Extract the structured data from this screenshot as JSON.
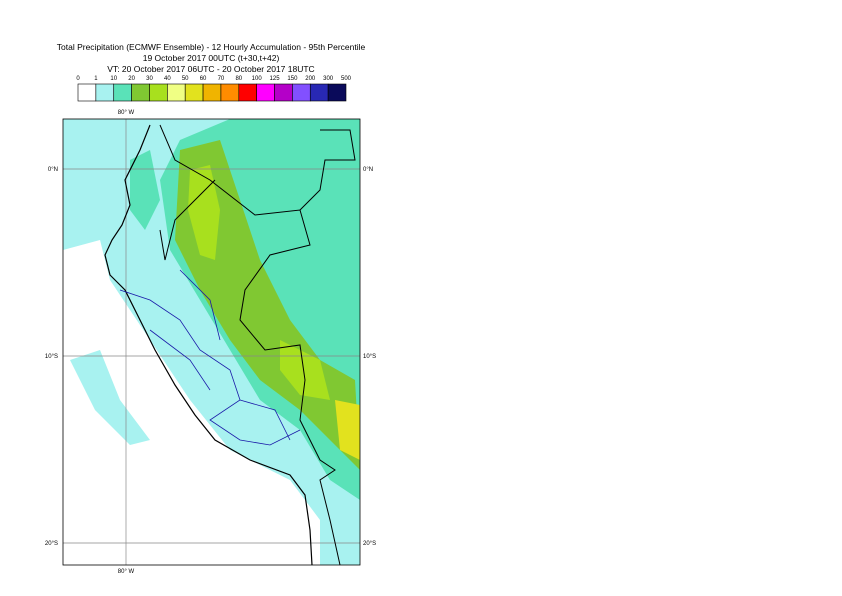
{
  "header": {
    "title": "Total Precipitation (ECMWF Ensemble) - 12 Hourly Accumulation - 95th Percentile",
    "subtitle": "19 October 2017 00UTC (t+30,t+42)",
    "valid_time": "VT: 20 October 2017 06UTC - 20 October 2017 18UTC"
  },
  "legend": {
    "labels": [
      "0",
      "1",
      "10",
      "20",
      "30",
      "40",
      "50",
      "60",
      "70",
      "80",
      "100",
      "125",
      "150",
      "200",
      "300",
      "500"
    ],
    "colors": [
      "#ffffff",
      "#a8f2f0",
      "#5ae2b8",
      "#80c832",
      "#a8e01e",
      "#f0ff84",
      "#e2e21e",
      "#f0b400",
      "#ff8c00",
      "#ff0000",
      "#ff00ff",
      "#b400c8",
      "#8250ff",
      "#2828b4",
      "#0a0a5a"
    ]
  },
  "map": {
    "lon_label": "80° W",
    "lat_labels": [
      "0°N",
      "10°S",
      "20°S"
    ]
  }
}
